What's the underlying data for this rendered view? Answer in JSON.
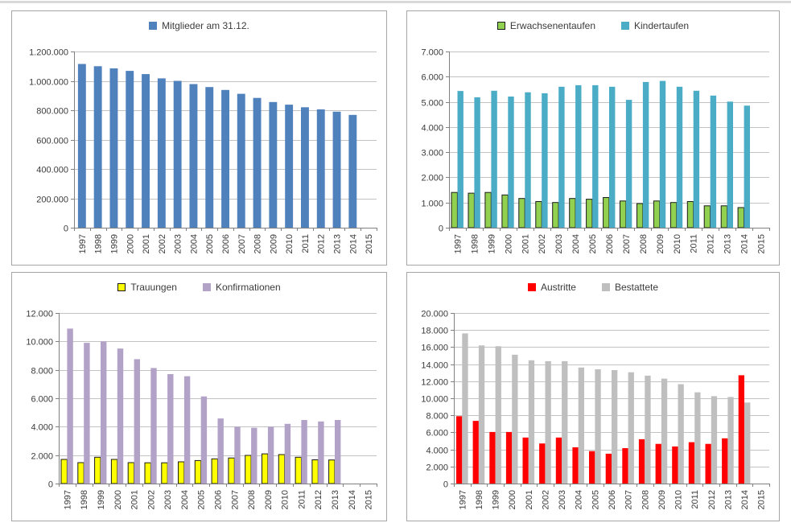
{
  "page": {
    "background": "#FFFFFF",
    "panel_border_color": "#A6A6A6",
    "gridline_color": "#C3C3C3",
    "axis_color": "#808080",
    "text_color": "#3B3B3B"
  },
  "chart_data": [
    {
      "type": "bar",
      "title": "Mitglieder am 31.12.",
      "legend_position": "top",
      "grid": true,
      "xlabel": "",
      "ylabel": "",
      "ylim": [
        0,
        1200000
      ],
      "ystep": 200000,
      "categories": [
        "1997",
        "1998",
        "1999",
        "2000",
        "2001",
        "2002",
        "2003",
        "2004",
        "2005",
        "2006",
        "2007",
        "2008",
        "2009",
        "2010",
        "2011",
        "2012",
        "2013",
        "2014",
        "2015"
      ],
      "series": [
        {
          "name": "Mitglieder am 31.12.",
          "color": "#4F81BD",
          "border": null,
          "values": [
            1115000,
            1100000,
            1085000,
            1068000,
            1046000,
            1017000,
            1000000,
            978000,
            958000,
            938000,
            912000,
            884000,
            856000,
            838000,
            820000,
            806000,
            790000,
            768000,
            null
          ]
        }
      ]
    },
    {
      "type": "bar",
      "title": "Erwachsenentaufen / Kindertaufen",
      "legend_position": "top",
      "grid": true,
      "xlabel": "",
      "ylabel": "",
      "ylim": [
        0,
        7000
      ],
      "ystep": 1000,
      "categories": [
        "1997",
        "1998",
        "1999",
        "2000",
        "2001",
        "2002",
        "2003",
        "2004",
        "2005",
        "2006",
        "2007",
        "2008",
        "2009",
        "2010",
        "2011",
        "2012",
        "2013",
        "2014",
        "2015"
      ],
      "series": [
        {
          "name": "Erwachsenentaufen",
          "color": "#92D050",
          "border": "#1A1A1A",
          "values": [
            1400,
            1370,
            1400,
            1300,
            1160,
            1040,
            1000,
            1160,
            1130,
            1200,
            1060,
            960,
            1060,
            1000,
            1040,
            870,
            870,
            800,
            null
          ]
        },
        {
          "name": "Kindertaufen",
          "color": "#4BACC6",
          "border": null,
          "values": [
            5430,
            5180,
            5440,
            5210,
            5380,
            5340,
            5600,
            5660,
            5660,
            5600,
            5080,
            5790,
            5830,
            5600,
            5440,
            5250,
            5010,
            4850,
            null
          ]
        }
      ]
    },
    {
      "type": "bar",
      "title": "Trauungen / Konfirmationen",
      "legend_position": "top",
      "grid": true,
      "xlabel": "",
      "ylabel": "",
      "ylim": [
        0,
        12000
      ],
      "ystep": 2000,
      "categories": [
        "1997",
        "1998",
        "1999",
        "2000",
        "2001",
        "2002",
        "2003",
        "2004",
        "2005",
        "2006",
        "2007",
        "2008",
        "2009",
        "2010",
        "2011",
        "2012",
        "2013",
        "2014",
        "2015"
      ],
      "series": [
        {
          "name": "Trauungen",
          "color": "#FFFF00",
          "border": "#1A1A1A",
          "values": [
            1700,
            1470,
            1850,
            1700,
            1470,
            1460,
            1460,
            1530,
            1620,
            1740,
            1800,
            1980,
            2090,
            2040,
            1850,
            1670,
            1660,
            null,
            null
          ]
        },
        {
          "name": "Konfirmationen",
          "color": "#B3A2C7",
          "border": null,
          "values": [
            10900,
            9900,
            10000,
            9500,
            8750,
            8130,
            7700,
            7550,
            6130,
            4580,
            4000,
            3920,
            4000,
            4200,
            4470,
            4370,
            4470,
            null,
            null
          ]
        }
      ]
    },
    {
      "type": "bar",
      "title": "Austritte / Bestattete",
      "legend_position": "top",
      "grid": true,
      "xlabel": "",
      "ylabel": "",
      "ylim": [
        0,
        20000
      ],
      "ystep": 2000,
      "categories": [
        "1997",
        "1998",
        "1999",
        "2000",
        "2001",
        "2002",
        "2003",
        "2004",
        "2005",
        "2006",
        "2007",
        "2008",
        "2009",
        "2010",
        "2011",
        "2012",
        "2013",
        "2014",
        "2015"
      ],
      "series": [
        {
          "name": "Austritte",
          "color": "#FF0000",
          "border": null,
          "values": [
            7900,
            7350,
            6050,
            6050,
            5400,
            4700,
            5400,
            4250,
            3800,
            3500,
            4150,
            5200,
            4650,
            4350,
            4850,
            4650,
            5300,
            12700,
            null
          ]
        },
        {
          "name": "Bestattete",
          "color": "#BFBFBF",
          "border": null,
          "values": [
            17600,
            16200,
            16100,
            15100,
            14450,
            14350,
            14350,
            13600,
            13400,
            13300,
            13050,
            12650,
            12300,
            11650,
            10700,
            10250,
            10150,
            9500,
            null
          ]
        }
      ]
    }
  ]
}
